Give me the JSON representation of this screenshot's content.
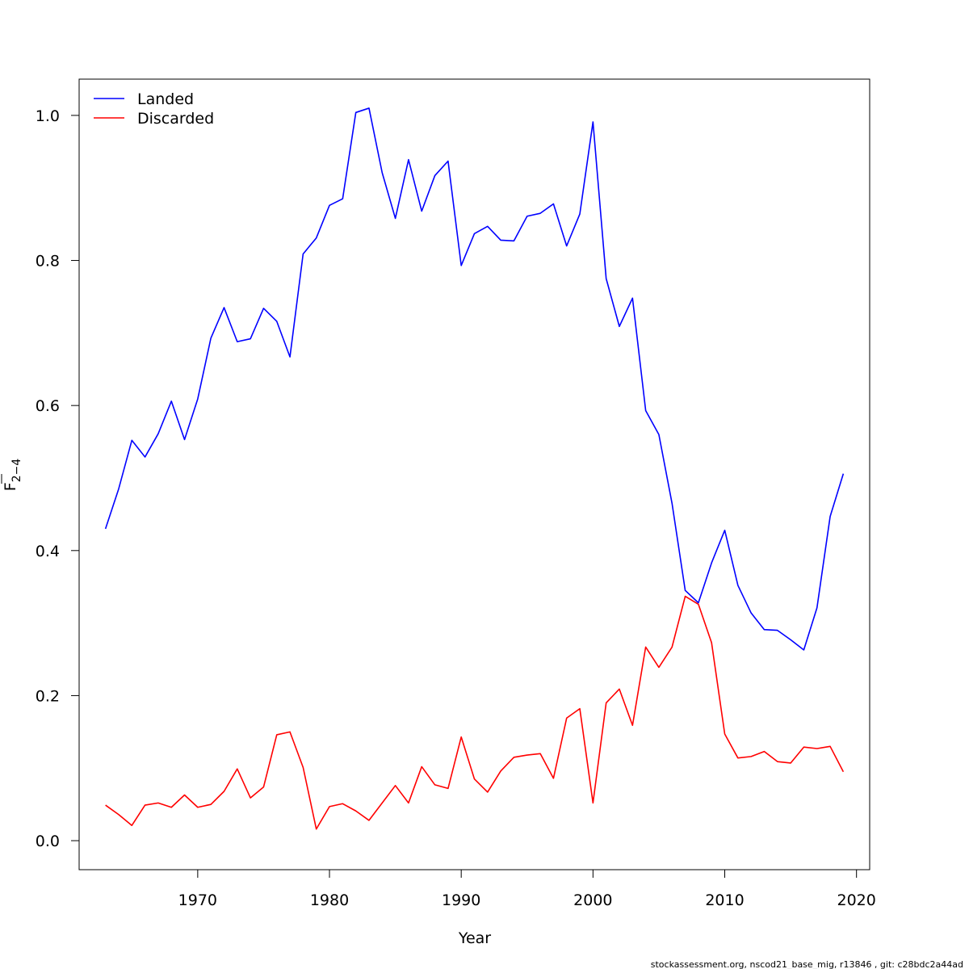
{
  "chart_data": {
    "type": "line",
    "xlabel": "Year",
    "ylabel": "F",
    "ylabel_subscript": "2−4",
    "xlim": [
      1961,
      2021
    ],
    "ylim": [
      -0.04,
      1.05
    ],
    "xticks": [
      1970,
      1980,
      1990,
      2000,
      2010,
      2020
    ],
    "xtick_labels": [
      "1970",
      "1980",
      "1990",
      "2000",
      "2010",
      "2020"
    ],
    "yticks": [
      0.0,
      0.2,
      0.4,
      0.6,
      0.8,
      1.0
    ],
    "ytick_labels": [
      "0.0",
      "0.2",
      "0.4",
      "0.6",
      "0.8",
      "1.0"
    ],
    "legend_position": "top-left",
    "grid": false,
    "x": [
      1963,
      1964,
      1965,
      1966,
      1967,
      1968,
      1969,
      1970,
      1971,
      1972,
      1973,
      1974,
      1975,
      1976,
      1977,
      1978,
      1979,
      1980,
      1981,
      1982,
      1983,
      1984,
      1985,
      1986,
      1987,
      1988,
      1989,
      1990,
      1991,
      1992,
      1993,
      1994,
      1995,
      1996,
      1997,
      1998,
      1999,
      2000,
      2001,
      2002,
      2003,
      2004,
      2005,
      2006,
      2007,
      2008,
      2009,
      2010,
      2011,
      2012,
      2013,
      2014,
      2015,
      2016,
      2017,
      2018,
      2019
    ],
    "series": [
      {
        "name": "Landed",
        "color": "#0000ff",
        "values": [
          0.43,
          0.485,
          0.552,
          0.529,
          0.561,
          0.606,
          0.553,
          0.609,
          0.693,
          0.735,
          0.688,
          0.692,
          0.734,
          0.716,
          0.667,
          0.809,
          0.831,
          0.876,
          0.885,
          1.004,
          1.01,
          0.921,
          0.858,
          0.939,
          0.868,
          0.917,
          0.937,
          0.793,
          0.837,
          0.847,
          0.828,
          0.827,
          0.861,
          0.865,
          0.878,
          0.82,
          0.864,
          0.991,
          0.775,
          0.709,
          0.748,
          0.593,
          0.56,
          0.465,
          0.345,
          0.328,
          0.383,
          0.428,
          0.352,
          0.314,
          0.291,
          0.29,
          0.277,
          0.263,
          0.321,
          0.447,
          0.506
        ]
      },
      {
        "name": "Discarded",
        "color": "#ff0000",
        "values": [
          0.049,
          0.036,
          0.021,
          0.049,
          0.052,
          0.046,
          0.063,
          0.046,
          0.05,
          0.068,
          0.099,
          0.059,
          0.074,
          0.146,
          0.15,
          0.101,
          0.016,
          0.047,
          0.051,
          0.041,
          0.028,
          0.052,
          0.076,
          0.052,
          0.102,
          0.077,
          0.072,
          0.143,
          0.085,
          0.067,
          0.096,
          0.115,
          0.118,
          0.12,
          0.086,
          0.169,
          0.182,
          0.052,
          0.19,
          0.209,
          0.159,
          0.267,
          0.239,
          0.267,
          0.337,
          0.326,
          0.273,
          0.147,
          0.114,
          0.116,
          0.123,
          0.109,
          0.107,
          0.129,
          0.127,
          0.13,
          0.095
        ]
      }
    ]
  },
  "footer": {
    "text": "stockassessment.org, nscod21_base_mig, r13846 , git: c28bdc2a44ad"
  }
}
